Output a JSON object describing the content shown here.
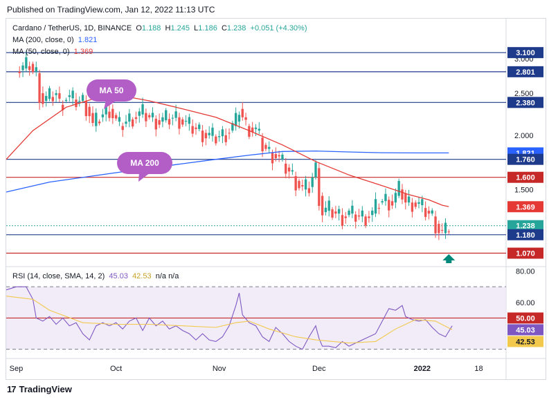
{
  "header": {
    "published": "Published on TradingView.com, Jan 12, 2022 11:13 UTC"
  },
  "legend": {
    "symbol": "Cardano / TetherUS, 1D, BINANCE",
    "o_label": "O",
    "o_value": "1.188",
    "h_label": "H",
    "h_value": "1.245",
    "l_label": "L",
    "l_value": "1.186",
    "c_label": "C",
    "c_value": "1.238",
    "change": "+0.051 (+4.30%)",
    "ma200_label": "MA (200, close, 0)",
    "ma200_value": "1.821",
    "ma50_label": "MA (50, close, 0)",
    "ma50_value": "1.369",
    "rsi_label": "RSI (14, close, SMA, 14, 2)",
    "rsi_value": "45.03",
    "rsi_ma_value": "42.53",
    "rsi_na": "n/a n/a"
  },
  "footer": {
    "brand": "TradingView"
  },
  "colors": {
    "up": "#26a69a",
    "down": "#ef5350",
    "ma50": "#e53935",
    "ma200": "#2962ff",
    "rsi": "#7e57c2",
    "rsi_ma": "#f2c94c",
    "hline_blue": "#1e3a8a",
    "hline_red": "#c62828",
    "callout": "#b35ec7"
  },
  "chart_data": [
    {
      "type": "candlestick",
      "title": "Cardano / TetherUS, 1D, BINANCE",
      "x_ticks": [
        {
          "label": "Sep",
          "day": 0
        },
        {
          "label": "Oct",
          "day": 30
        },
        {
          "label": "Nov",
          "day": 61
        },
        {
          "label": "Dec",
          "day": 91
        },
        {
          "label": "2022",
          "day": 122
        },
        {
          "label": "18",
          "day": 139
        }
      ],
      "xlim": [
        -3,
        147
      ],
      "y_scale": "log",
      "y_ticks": [
        "3.000",
        "2.500",
        "2.000",
        "1.500"
      ],
      "ylim": [
        1.0,
        3.35
      ],
      "close_points": [
        [
          0,
          2.8
        ],
        [
          2,
          2.85
        ],
        [
          4,
          2.92
        ],
        [
          5,
          2.8
        ],
        [
          6,
          2.78
        ],
        [
          7,
          2.5
        ],
        [
          8,
          2.4
        ],
        [
          10,
          2.45
        ],
        [
          12,
          2.5
        ],
        [
          13,
          2.35
        ],
        [
          15,
          2.45
        ],
        [
          18,
          2.4
        ],
        [
          20,
          2.4
        ],
        [
          22,
          2.25
        ],
        [
          23,
          2.1
        ],
        [
          25,
          2.2
        ],
        [
          28,
          2.3
        ],
        [
          30,
          2.15
        ],
        [
          31,
          2.1
        ],
        [
          33,
          2.15
        ],
        [
          35,
          2.2
        ],
        [
          38,
          2.25
        ],
        [
          40,
          2.2
        ],
        [
          43,
          2.15
        ],
        [
          45,
          2.18
        ],
        [
          48,
          2.2
        ],
        [
          50,
          2.15
        ],
        [
          52,
          2.1
        ],
        [
          55,
          2.05
        ],
        [
          57,
          2.0
        ],
        [
          60,
          1.98
        ],
        [
          62,
          2.0
        ],
        [
          64,
          2.05
        ],
        [
          66,
          2.15
        ],
        [
          67,
          2.3
        ],
        [
          69,
          2.1
        ],
        [
          72,
          2.05
        ],
        [
          74,
          1.9
        ],
        [
          76,
          1.82
        ],
        [
          78,
          1.8
        ],
        [
          80,
          1.72
        ],
        [
          82,
          1.65
        ],
        [
          84,
          1.57
        ],
        [
          86,
          1.5
        ],
        [
          88,
          1.52
        ],
        [
          90,
          1.68
        ],
        [
          91,
          1.45
        ],
        [
          92,
          1.33
        ],
        [
          94,
          1.35
        ],
        [
          96,
          1.32
        ],
        [
          98,
          1.3
        ],
        [
          100,
          1.32
        ],
        [
          103,
          1.3
        ],
        [
          105,
          1.3
        ],
        [
          107,
          1.32
        ],
        [
          109,
          1.4
        ],
        [
          111,
          1.42
        ],
        [
          113,
          1.4
        ],
        [
          115,
          1.5
        ],
        [
          116,
          1.47
        ],
        [
          117,
          1.4
        ],
        [
          119,
          1.4
        ],
        [
          121,
          1.38
        ],
        [
          123,
          1.34
        ],
        [
          125,
          1.3
        ],
        [
          126,
          1.25
        ],
        [
          127,
          1.21
        ],
        [
          128,
          1.19
        ],
        [
          129,
          1.2
        ],
        [
          130,
          1.238
        ]
      ],
      "ma50": [
        [
          -3,
          1.76
        ],
        [
          5,
          2.05
        ],
        [
          15,
          2.32
        ],
        [
          25,
          2.45
        ],
        [
          30,
          2.48
        ],
        [
          40,
          2.4
        ],
        [
          50,
          2.3
        ],
        [
          60,
          2.2
        ],
        [
          70,
          2.05
        ],
        [
          80,
          1.9
        ],
        [
          90,
          1.74
        ],
        [
          100,
          1.62
        ],
        [
          110,
          1.53
        ],
        [
          118,
          1.46
        ],
        [
          124,
          1.42
        ],
        [
          128,
          1.38
        ],
        [
          130,
          1.37
        ]
      ],
      "ma200": [
        [
          -3,
          1.48
        ],
        [
          10,
          1.56
        ],
        [
          30,
          1.64
        ],
        [
          50,
          1.72
        ],
        [
          60,
          1.76
        ],
        [
          70,
          1.8
        ],
        [
          80,
          1.835
        ],
        [
          90,
          1.84
        ],
        [
          100,
          1.83
        ],
        [
          110,
          1.823
        ],
        [
          120,
          1.821
        ],
        [
          130,
          1.821
        ]
      ],
      "price_labels": [
        {
          "value": "3.100",
          "kind": "hline-blue"
        },
        {
          "value": "2.801",
          "kind": "hline-blue"
        },
        {
          "value": "2.380",
          "kind": "hline-blue"
        },
        {
          "value": "1.821",
          "kind": "ma200"
        },
        {
          "value": "1.760",
          "kind": "hline-blue"
        },
        {
          "value": "1.600",
          "kind": "hline-red"
        },
        {
          "value": "1.369",
          "kind": "ma50"
        },
        {
          "value": "1.238",
          "kind": "last"
        },
        {
          "value": "1.180",
          "kind": "hline-blue"
        },
        {
          "value": "1.070",
          "kind": "hline-red"
        }
      ],
      "annotations": [
        "MA 50",
        "MA 200"
      ]
    },
    {
      "type": "line",
      "title": "RSI (14, close, SMA, 14, 2)",
      "ylim": [
        25,
        82
      ],
      "y_ticks": [
        "80.00",
        "60.00"
      ],
      "levels": {
        "upper": 70,
        "middle": 50,
        "lower": 30
      },
      "series": [
        {
          "name": "RSI",
          "points": [
            [
              -3,
              68
            ],
            [
              0,
              70
            ],
            [
              3,
              70
            ],
            [
              5,
              62
            ],
            [
              6,
              50
            ],
            [
              8,
              48
            ],
            [
              10,
              51
            ],
            [
              12,
              46
            ],
            [
              14,
              50
            ],
            [
              16,
              45
            ],
            [
              18,
              47
            ],
            [
              20,
              40
            ],
            [
              22,
              36
            ],
            [
              24,
              45
            ],
            [
              26,
              47
            ],
            [
              28,
              45
            ],
            [
              30,
              47
            ],
            [
              32,
              43
            ],
            [
              34,
              48
            ],
            [
              36,
              50
            ],
            [
              38,
              42
            ],
            [
              40,
              50
            ],
            [
              42,
              45
            ],
            [
              44,
              48
            ],
            [
              46,
              43
            ],
            [
              48,
              45
            ],
            [
              50,
              42
            ],
            [
              52,
              40
            ],
            [
              54,
              36
            ],
            [
              56,
              40
            ],
            [
              58,
              36
            ],
            [
              60,
              35
            ],
            [
              62,
              38
            ],
            [
              64,
              45
            ],
            [
              66,
              58
            ],
            [
              67,
              66
            ],
            [
              68,
              52
            ],
            [
              70,
              47
            ],
            [
              72,
              45
            ],
            [
              74,
              38
            ],
            [
              76,
              35
            ],
            [
              78,
              44
            ],
            [
              80,
              40
            ],
            [
              82,
              35
            ],
            [
              84,
              32
            ],
            [
              86,
              30
            ],
            [
              88,
              38
            ],
            [
              90,
              45
            ],
            [
              91,
              37
            ],
            [
              92,
              32
            ],
            [
              94,
              32
            ],
            [
              96,
              31
            ],
            [
              98,
              35
            ],
            [
              100,
              32
            ],
            [
              102,
              34
            ],
            [
              104,
              36
            ],
            [
              106,
              38
            ],
            [
              108,
              40
            ],
            [
              110,
              48
            ],
            [
              112,
              56
            ],
            [
              114,
              55
            ],
            [
              116,
              58
            ],
            [
              117,
              51
            ],
            [
              119,
              49
            ],
            [
              121,
              48
            ],
            [
              123,
              49
            ],
            [
              125,
              44
            ],
            [
              127,
              40
            ],
            [
              129,
              38
            ],
            [
              131,
              45.03
            ]
          ]
        },
        {
          "name": "RSI MA",
          "points": [
            [
              -3,
              64
            ],
            [
              5,
              62
            ],
            [
              10,
              55
            ],
            [
              20,
              47
            ],
            [
              30,
              46
            ],
            [
              40,
              46
            ],
            [
              50,
              45
            ],
            [
              60,
              44
            ],
            [
              66,
              47
            ],
            [
              70,
              48
            ],
            [
              76,
              43
            ],
            [
              84,
              38
            ],
            [
              90,
              36
            ],
            [
              100,
              34
            ],
            [
              108,
              35
            ],
            [
              114,
              43
            ],
            [
              120,
              49
            ],
            [
              126,
              48
            ],
            [
              131,
              42.53
            ]
          ]
        }
      ]
    }
  ]
}
